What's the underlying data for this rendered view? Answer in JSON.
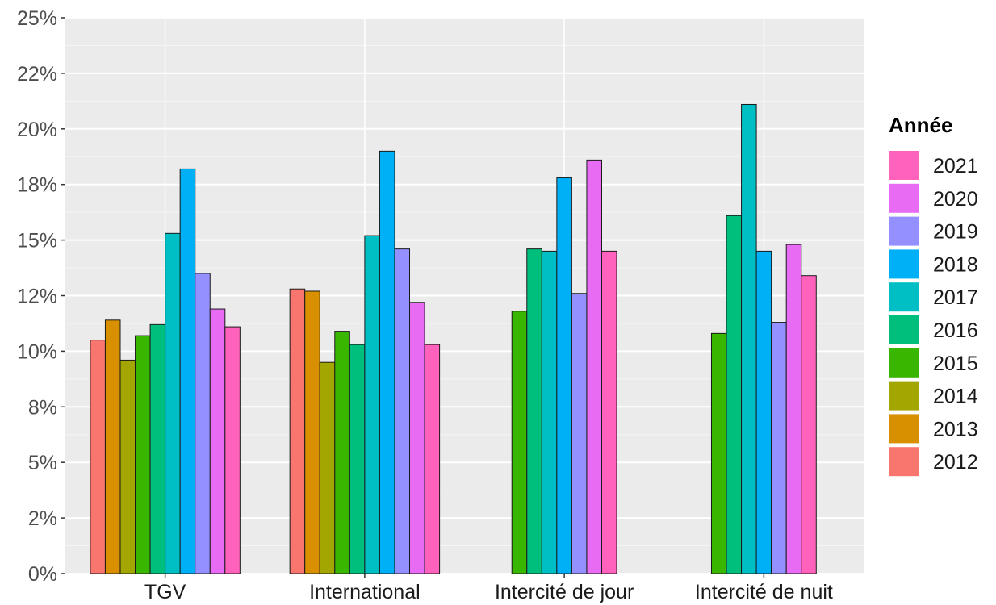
{
  "chart_data": {
    "type": "bar",
    "categories": [
      "TGV",
      "International",
      "Intercité de jour",
      "Intercité de nuit"
    ],
    "series": [
      {
        "name": "2012",
        "color": "#F8766D",
        "values": [
          10.5,
          12.8,
          null,
          null
        ]
      },
      {
        "name": "2013",
        "color": "#D89000",
        "values": [
          11.4,
          12.7,
          null,
          null
        ]
      },
      {
        "name": "2014",
        "color": "#A3A500",
        "values": [
          9.6,
          9.5,
          null,
          null
        ]
      },
      {
        "name": "2015",
        "color": "#39B600",
        "values": [
          10.7,
          10.9,
          11.8,
          10.8
        ]
      },
      {
        "name": "2016",
        "color": "#00BF7D",
        "values": [
          11.2,
          10.3,
          14.6,
          16.1
        ]
      },
      {
        "name": "2017",
        "color": "#00BFC4",
        "values": [
          15.3,
          15.2,
          14.5,
          21.1
        ]
      },
      {
        "name": "2018",
        "color": "#00B0F6",
        "values": [
          18.2,
          19.0,
          17.8,
          14.5
        ]
      },
      {
        "name": "2019",
        "color": "#9590FF",
        "values": [
          13.5,
          14.6,
          12.6,
          11.3
        ]
      },
      {
        "name": "2020",
        "color": "#E76BF3",
        "values": [
          11.9,
          12.2,
          18.6,
          14.8
        ]
      },
      {
        "name": "2021",
        "color": "#FF62BC",
        "values": [
          11.1,
          10.3,
          14.5,
          13.4
        ]
      }
    ],
    "yticks": [
      "0%",
      "2%",
      "5%",
      "8%",
      "10%",
      "12%",
      "15%",
      "18%",
      "20%",
      "22%",
      "25%"
    ],
    "ylim": [
      0,
      25
    ],
    "legend": {
      "title": "Année",
      "position": "right",
      "order": "reversed"
    },
    "grid": true,
    "panel_background": "#EBEBEB",
    "bar_outline": "#1a1a1a"
  }
}
